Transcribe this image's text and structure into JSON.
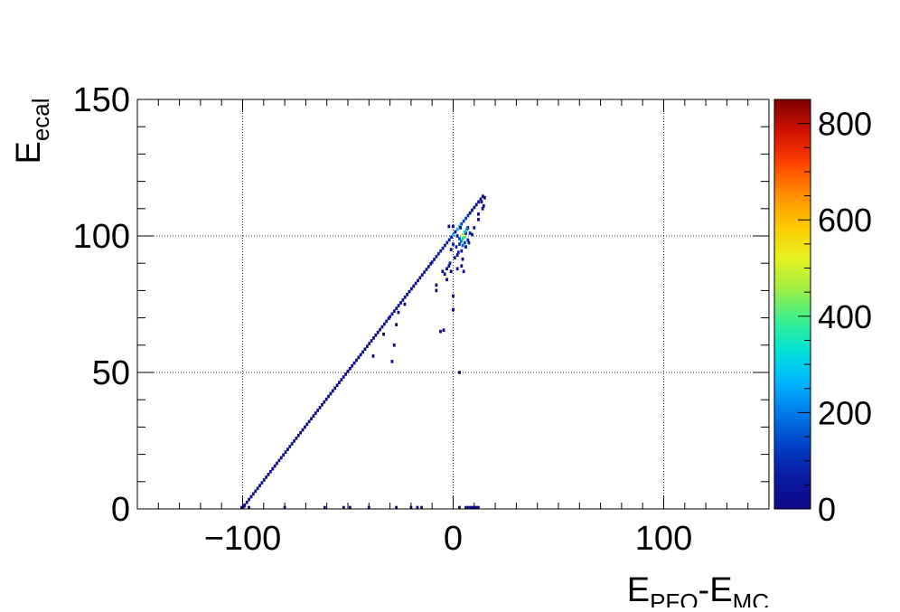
{
  "chart_data": {
    "type": "heatmap",
    "title": "",
    "xlabel": "E_PFO-E_MC",
    "xlabel_parts": {
      "main1": "E",
      "sub1": "PFO",
      "sep": "-",
      "main2": "E",
      "sub2": "MC"
    },
    "ylabel": "E_ecal",
    "ylabel_parts": {
      "main": "E",
      "sub": "ecal"
    },
    "xlim": [
      -150,
      150
    ],
    "ylim": [
      0,
      150
    ],
    "zlim": [
      0,
      850
    ],
    "x_ticks": [
      -100,
      0,
      100
    ],
    "x_tick_labels": [
      "−100",
      "0",
      "100"
    ],
    "y_ticks": [
      0,
      50,
      100,
      150
    ],
    "y_tick_labels": [
      "0",
      "50",
      "100",
      "150"
    ],
    "z_ticks": [
      0,
      200,
      400,
      600,
      800
    ],
    "z_tick_labels": [
      "0",
      "200",
      "400",
      "600",
      "800"
    ],
    "grid": true,
    "colorbar": "right",
    "bin_width": 1.2,
    "diagonal_band": {
      "description_of_data": "dense diagonal ridge y = x + 100",
      "segments": [
        {
          "x_start": -100,
          "x_end": -30,
          "count": 8
        },
        {
          "x_start": -30,
          "x_end": -10,
          "count": 20
        },
        {
          "x_start": -10,
          "x_end": 0,
          "count": 60
        },
        {
          "x_start": 0,
          "x_end": 4,
          "count": 260
        },
        {
          "x_start": 4,
          "x_end": 8,
          "count": 120
        },
        {
          "x_start": 8,
          "x_end": 15,
          "count": 15
        }
      ]
    },
    "bins": [
      {
        "x": -100.5,
        "y": 0.5,
        "z": 30
      },
      {
        "x": -99.3,
        "y": 1.0,
        "z": 20
      },
      {
        "x": -97.0,
        "y": 0.5,
        "z": 8
      },
      {
        "x": -80.0,
        "y": 0.5,
        "z": 5
      },
      {
        "x": -61.0,
        "y": 0.5,
        "z": 4
      },
      {
        "x": -52.0,
        "y": 0.5,
        "z": 4
      },
      {
        "x": -49.0,
        "y": 0.5,
        "z": 4
      },
      {
        "x": -40.0,
        "y": 0.5,
        "z": 4
      },
      {
        "x": -27.0,
        "y": 0.5,
        "z": 4
      },
      {
        "x": -20.0,
        "y": 0.5,
        "z": 4
      },
      {
        "x": -17.0,
        "y": 0.5,
        "z": 4
      },
      {
        "x": -15.0,
        "y": 0.5,
        "z": 4
      },
      {
        "x": 3.0,
        "y": 0.5,
        "z": 8
      },
      {
        "x": 6.0,
        "y": 0.5,
        "z": 20
      },
      {
        "x": 7.2,
        "y": 0.5,
        "z": 20
      },
      {
        "x": 8.4,
        "y": 0.5,
        "z": 20
      },
      {
        "x": 9.6,
        "y": 0.5,
        "z": 20
      },
      {
        "x": 10.8,
        "y": 0.5,
        "z": 20
      },
      {
        "x": 12.0,
        "y": 0.5,
        "z": 15
      },
      {
        "x": -23.0,
        "y": 75.0,
        "z": 5
      },
      {
        "x": -26.0,
        "y": 72.0,
        "z": 5
      },
      {
        "x": -27.0,
        "y": 67.5,
        "z": 4
      },
      {
        "x": -33.0,
        "y": 64.0,
        "z": 4
      },
      {
        "x": -28.0,
        "y": 60.0,
        "z": 4
      },
      {
        "x": -38.0,
        "y": 56.0,
        "z": 4
      },
      {
        "x": -29.0,
        "y": 54.0,
        "z": 4
      },
      {
        "x": -6.0,
        "y": 65.0,
        "z": 6
      },
      {
        "x": -4.5,
        "y": 65.5,
        "z": 5
      },
      {
        "x": 0.0,
        "y": 73.0,
        "z": 5
      },
      {
        "x": 0.0,
        "y": 78.0,
        "z": 6
      },
      {
        "x": 3.0,
        "y": 50.0,
        "z": 4
      },
      {
        "x": -8.0,
        "y": 82.0,
        "z": 8
      },
      {
        "x": -8.0,
        "y": 80.0,
        "z": 5
      },
      {
        "x": -3.0,
        "y": 84.0,
        "z": 10
      },
      {
        "x": -1.0,
        "y": 87.0,
        "z": 20
      },
      {
        "x": 2.0,
        "y": 88.0,
        "z": 15
      },
      {
        "x": 4.0,
        "y": 89.0,
        "z": 10
      },
      {
        "x": 5.0,
        "y": 87.0,
        "z": 8
      },
      {
        "x": 4.5,
        "y": 91.5,
        "z": 10
      },
      {
        "x": 2.0,
        "y": 93.0,
        "z": 30
      },
      {
        "x": 4.0,
        "y": 94.5,
        "z": 40
      },
      {
        "x": 6.0,
        "y": 96.0,
        "z": 35
      },
      {
        "x": 7.0,
        "y": 98.5,
        "z": 30
      },
      {
        "x": 6.0,
        "y": 101.0,
        "z": 20
      },
      {
        "x": 7.0,
        "y": 103.0,
        "z": 15
      },
      {
        "x": -2.0,
        "y": 103.5,
        "z": 5
      },
      {
        "x": 0.0,
        "y": 103.5,
        "z": 5
      },
      {
        "x": 10.0,
        "y": 103.0,
        "z": 30
      },
      {
        "x": 9.0,
        "y": 100.5,
        "z": 25
      },
      {
        "x": 8.0,
        "y": 101.0,
        "z": 30
      },
      {
        "x": 12.0,
        "y": 106.0,
        "z": 8
      },
      {
        "x": 14.0,
        "y": 110.0,
        "z": 8
      },
      {
        "x": 14.5,
        "y": 111.0,
        "z": 8
      },
      {
        "x": 15.0,
        "y": 114.0,
        "z": 10
      },
      {
        "x": 13.5,
        "y": 112.5,
        "z": 8
      },
      {
        "x": 12.0,
        "y": 108.0,
        "z": 6
      },
      {
        "x": -2.0,
        "y": 89.0,
        "z": 30
      },
      {
        "x": -3.0,
        "y": 88.0,
        "z": 25
      },
      {
        "x": -5.0,
        "y": 87.0,
        "z": 20
      },
      {
        "x": -4.0,
        "y": 86.0,
        "z": 15
      },
      {
        "x": -1.5,
        "y": 90.0,
        "z": 40
      },
      {
        "x": 0.8,
        "y": 92.0,
        "z": 60
      },
      {
        "x": 2.5,
        "y": 94.0,
        "z": 80
      },
      {
        "x": 3.0,
        "y": 97.0,
        "z": 100
      },
      {
        "x": 3.8,
        "y": 98.0,
        "z": 180
      },
      {
        "x": 4.5,
        "y": 99.0,
        "z": 300
      },
      {
        "x": 5.5,
        "y": 99.5,
        "z": 400
      },
      {
        "x": 4.5,
        "y": 100.5,
        "z": 480
      },
      {
        "x": 5.5,
        "y": 101.5,
        "z": 280
      },
      {
        "x": 6.5,
        "y": 102.5,
        "z": 200
      },
      {
        "x": 3.0,
        "y": 99.0,
        "z": 150
      },
      {
        "x": 1.5,
        "y": 96.0,
        "z": 90
      },
      {
        "x": 0.0,
        "y": 97.0,
        "z": 40
      },
      {
        "x": -1.0,
        "y": 95.0,
        "z": 40
      },
      {
        "x": 2.0,
        "y": 100.0,
        "z": 50
      },
      {
        "x": 1.0,
        "y": 101.5,
        "z": 30
      },
      {
        "x": 3.5,
        "y": 103.0,
        "z": 20
      },
      {
        "x": 4.5,
        "y": 96.5,
        "z": 160
      },
      {
        "x": 5.5,
        "y": 97.5,
        "z": 120
      },
      {
        "x": 7.5,
        "y": 97.5,
        "z": 60
      }
    ]
  },
  "palette": {
    "stops": [
      "#0d0887",
      "#0a1a9f",
      "#0040c8",
      "#0078e8",
      "#00b4ff",
      "#00e0d8",
      "#3cf090",
      "#a0f040",
      "#e8f020",
      "#ffc800",
      "#ff8c00",
      "#ff4000",
      "#d01000",
      "#7f0000"
    ],
    "axis": "#000000",
    "grid": "#000000",
    "background": "#ffffff"
  }
}
